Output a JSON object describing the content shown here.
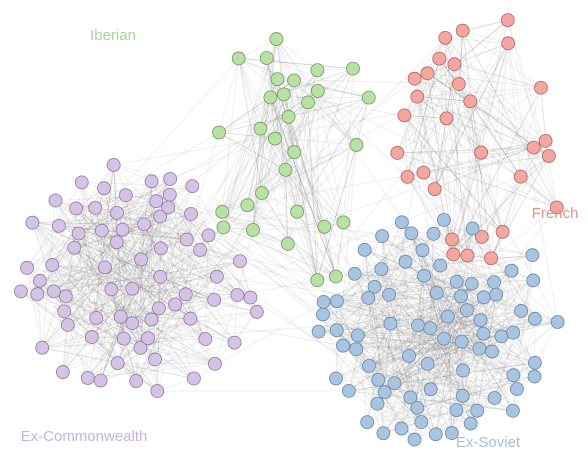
{
  "clusters": [
    {
      "label": "Iberian",
      "color": "#b9e0a5"
    },
    {
      "label": "French",
      "color": "#f4a6a0"
    },
    {
      "label": "Ex-Commonwealth",
      "color": "#d5c3e3"
    },
    {
      "label": "Ex-Soviet",
      "color": "#a9c4e0"
    }
  ]
}
